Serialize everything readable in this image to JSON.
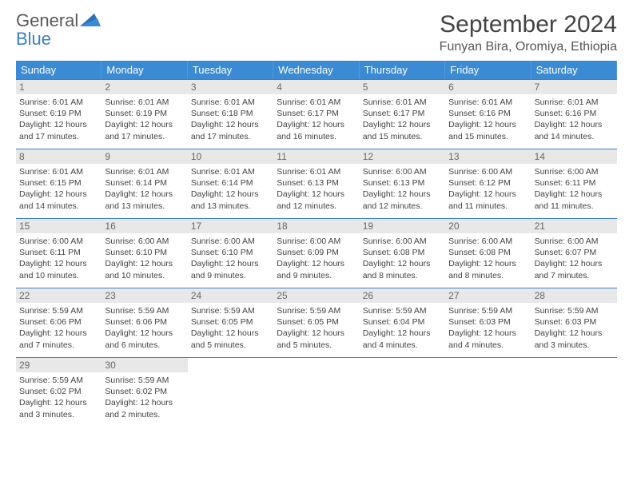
{
  "logo": {
    "top": "General",
    "bottom": "Blue"
  },
  "title": "September 2024",
  "location": "Funyan Bira, Oromiya, Ethiopia",
  "colors": {
    "header_bg": "#3b8bd4",
    "header_text": "#ffffff",
    "divider": "#3b7fc4",
    "daynum_bg": "#e8e8e8",
    "daynum_text": "#666666",
    "body_text": "#444444",
    "logo_gray": "#5a5a5a",
    "logo_blue": "#3b7fc4",
    "background": "#ffffff"
  },
  "weekdays": [
    "Sunday",
    "Monday",
    "Tuesday",
    "Wednesday",
    "Thursday",
    "Friday",
    "Saturday"
  ],
  "days": [
    {
      "n": 1,
      "sunrise": "6:01 AM",
      "sunset": "6:19 PM",
      "daylight": "12 hours and 17 minutes."
    },
    {
      "n": 2,
      "sunrise": "6:01 AM",
      "sunset": "6:19 PM",
      "daylight": "12 hours and 17 minutes."
    },
    {
      "n": 3,
      "sunrise": "6:01 AM",
      "sunset": "6:18 PM",
      "daylight": "12 hours and 17 minutes."
    },
    {
      "n": 4,
      "sunrise": "6:01 AM",
      "sunset": "6:17 PM",
      "daylight": "12 hours and 16 minutes."
    },
    {
      "n": 5,
      "sunrise": "6:01 AM",
      "sunset": "6:17 PM",
      "daylight": "12 hours and 15 minutes."
    },
    {
      "n": 6,
      "sunrise": "6:01 AM",
      "sunset": "6:16 PM",
      "daylight": "12 hours and 15 minutes."
    },
    {
      "n": 7,
      "sunrise": "6:01 AM",
      "sunset": "6:16 PM",
      "daylight": "12 hours and 14 minutes."
    },
    {
      "n": 8,
      "sunrise": "6:01 AM",
      "sunset": "6:15 PM",
      "daylight": "12 hours and 14 minutes."
    },
    {
      "n": 9,
      "sunrise": "6:01 AM",
      "sunset": "6:14 PM",
      "daylight": "12 hours and 13 minutes."
    },
    {
      "n": 10,
      "sunrise": "6:01 AM",
      "sunset": "6:14 PM",
      "daylight": "12 hours and 13 minutes."
    },
    {
      "n": 11,
      "sunrise": "6:01 AM",
      "sunset": "6:13 PM",
      "daylight": "12 hours and 12 minutes."
    },
    {
      "n": 12,
      "sunrise": "6:00 AM",
      "sunset": "6:13 PM",
      "daylight": "12 hours and 12 minutes."
    },
    {
      "n": 13,
      "sunrise": "6:00 AM",
      "sunset": "6:12 PM",
      "daylight": "12 hours and 11 minutes."
    },
    {
      "n": 14,
      "sunrise": "6:00 AM",
      "sunset": "6:11 PM",
      "daylight": "12 hours and 11 minutes."
    },
    {
      "n": 15,
      "sunrise": "6:00 AM",
      "sunset": "6:11 PM",
      "daylight": "12 hours and 10 minutes."
    },
    {
      "n": 16,
      "sunrise": "6:00 AM",
      "sunset": "6:10 PM",
      "daylight": "12 hours and 10 minutes."
    },
    {
      "n": 17,
      "sunrise": "6:00 AM",
      "sunset": "6:10 PM",
      "daylight": "12 hours and 9 minutes."
    },
    {
      "n": 18,
      "sunrise": "6:00 AM",
      "sunset": "6:09 PM",
      "daylight": "12 hours and 9 minutes."
    },
    {
      "n": 19,
      "sunrise": "6:00 AM",
      "sunset": "6:08 PM",
      "daylight": "12 hours and 8 minutes."
    },
    {
      "n": 20,
      "sunrise": "6:00 AM",
      "sunset": "6:08 PM",
      "daylight": "12 hours and 8 minutes."
    },
    {
      "n": 21,
      "sunrise": "6:00 AM",
      "sunset": "6:07 PM",
      "daylight": "12 hours and 7 minutes."
    },
    {
      "n": 22,
      "sunrise": "5:59 AM",
      "sunset": "6:06 PM",
      "daylight": "12 hours and 7 minutes."
    },
    {
      "n": 23,
      "sunrise": "5:59 AM",
      "sunset": "6:06 PM",
      "daylight": "12 hours and 6 minutes."
    },
    {
      "n": 24,
      "sunrise": "5:59 AM",
      "sunset": "6:05 PM",
      "daylight": "12 hours and 5 minutes."
    },
    {
      "n": 25,
      "sunrise": "5:59 AM",
      "sunset": "6:05 PM",
      "daylight": "12 hours and 5 minutes."
    },
    {
      "n": 26,
      "sunrise": "5:59 AM",
      "sunset": "6:04 PM",
      "daylight": "12 hours and 4 minutes."
    },
    {
      "n": 27,
      "sunrise": "5:59 AM",
      "sunset": "6:03 PM",
      "daylight": "12 hours and 4 minutes."
    },
    {
      "n": 28,
      "sunrise": "5:59 AM",
      "sunset": "6:03 PM",
      "daylight": "12 hours and 3 minutes."
    },
    {
      "n": 29,
      "sunrise": "5:59 AM",
      "sunset": "6:02 PM",
      "daylight": "12 hours and 3 minutes."
    },
    {
      "n": 30,
      "sunrise": "5:59 AM",
      "sunset": "6:02 PM",
      "daylight": "12 hours and 2 minutes."
    }
  ],
  "labels": {
    "sunrise": "Sunrise:",
    "sunset": "Sunset:",
    "daylight": "Daylight:"
  },
  "layout": {
    "start_weekday_index": 0,
    "fontsize_title": 30,
    "fontsize_location": 16,
    "fontsize_weekday": 13,
    "fontsize_daynum": 12,
    "fontsize_body": 10.5
  }
}
